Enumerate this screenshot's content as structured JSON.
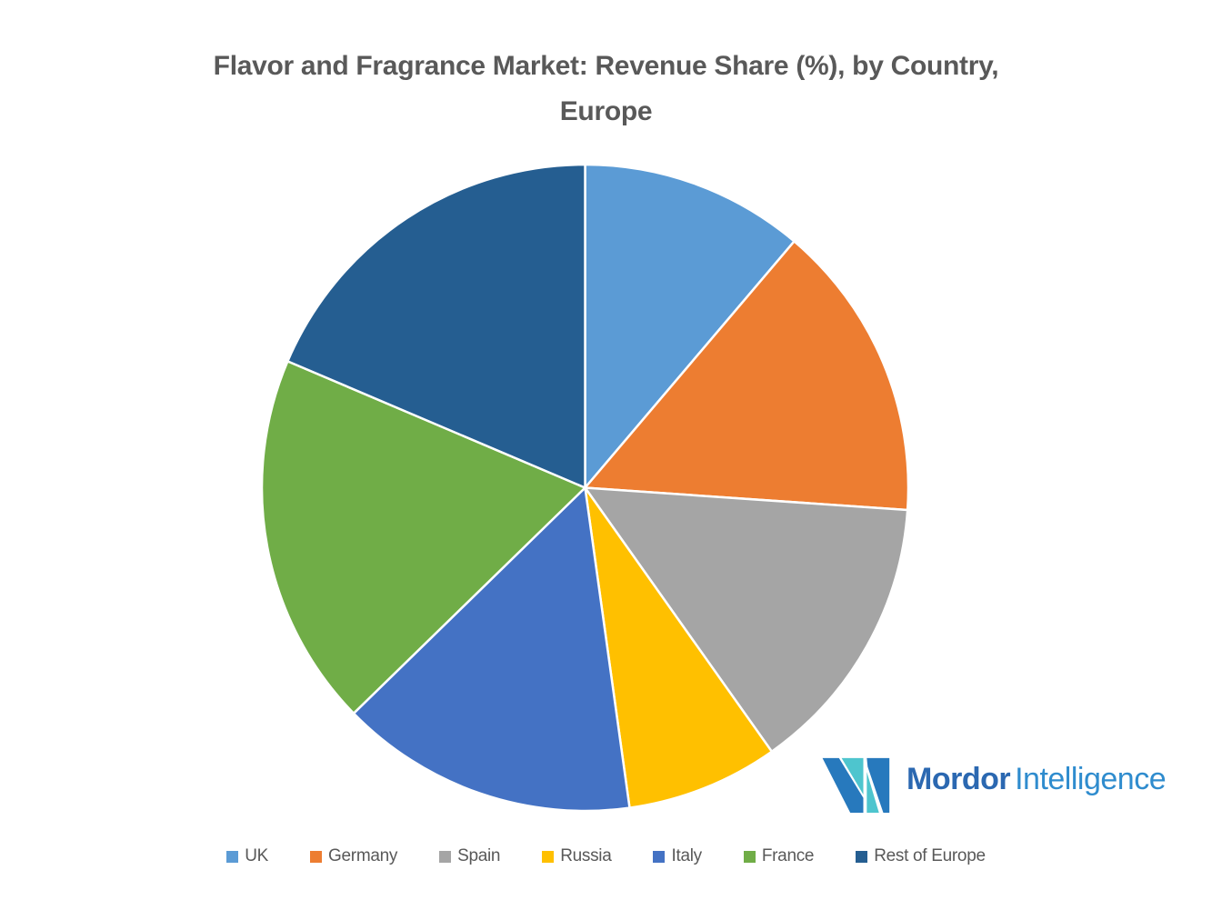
{
  "page": {
    "background_color": "#FFFFFF",
    "text_gray": "#595959"
  },
  "header": {
    "title_line1": "Flavor and Fragrance Market: Revenue Share (%), by Country,",
    "title_line2": "Europe",
    "title_color": "#595959"
  },
  "chart_data": {
    "type": "pie",
    "title": "Flavor and Fragrance Market: Revenue Share (%), by Country, Europe",
    "unit": "percent_revenue_share",
    "categories": [
      "UK",
      "Germany",
      "Spain",
      "Russia",
      "Italy",
      "France",
      "Rest of Europe"
    ],
    "values": [
      11.2,
      14.9,
      14.1,
      7.6,
      14.9,
      18.7,
      18.6
    ],
    "colors": [
      "#5B9BD5",
      "#ED7D31",
      "#A5A5A5",
      "#FFC000",
      "#4472C4",
      "#70AD47",
      "#255E91"
    ],
    "start_angle_deg": 0,
    "direction": "clockwise",
    "slice_border_color": "#FFFFFF",
    "data_labels": "none",
    "legend_position": "bottom"
  },
  "legend": {
    "text_color": "#595959"
  },
  "logo": {
    "text_primary": "Mordor",
    "text_secondary": "Intelligence",
    "primary_color": "#2B68B1",
    "secondary_color": "#2F8CCE",
    "mark_teal": "#4EC5CE",
    "mark_blue": "#2779BD"
  }
}
